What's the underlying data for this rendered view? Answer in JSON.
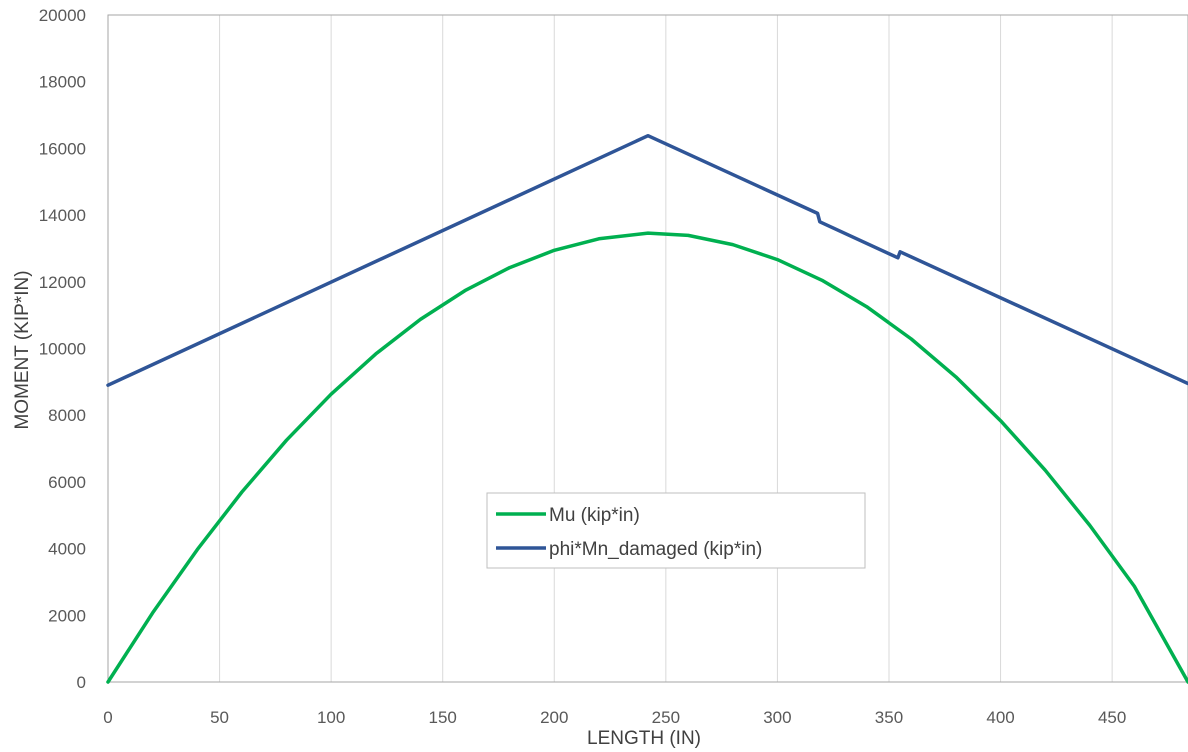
{
  "chart_data": {
    "type": "line",
    "title": "",
    "xlabel": "LENGTH (IN)",
    "ylabel": "MOMENT (KIP*IN)",
    "xlim": [
      0,
      484
    ],
    "ylim": [
      0,
      20000
    ],
    "xticks": [
      0,
      50,
      100,
      150,
      200,
      250,
      300,
      350,
      400,
      450
    ],
    "yticks": [
      0,
      2000,
      4000,
      6000,
      8000,
      10000,
      12000,
      14000,
      16000,
      18000,
      20000
    ],
    "grid": "vertical",
    "legend": "center-right",
    "series": [
      {
        "name": "Mu (kip*in)",
        "color": "#00B050",
        "x": [
          0,
          20,
          40,
          60,
          80,
          100,
          120,
          140,
          160,
          180,
          200,
          220,
          242,
          260,
          280,
          300,
          320,
          340,
          360,
          380,
          400,
          420,
          440,
          460,
          484
        ],
        "y": [
          0,
          2072,
          3970,
          5696,
          7249,
          8630,
          9838,
          10873,
          11736,
          12426,
          12944,
          13289,
          13461,
          13392,
          13116,
          12667,
          12046,
          11252,
          10286,
          9147,
          7835,
          6351,
          4695,
          2866,
          0
        ]
      },
      {
        "name": "phi*Mn_damaged (kip*in)",
        "color": "#2F5597",
        "x": [
          0,
          242,
          318,
          319,
          354,
          355,
          484
        ],
        "y": [
          8900,
          16380,
          14050,
          13800,
          12720,
          12900,
          8950
        ]
      }
    ]
  }
}
